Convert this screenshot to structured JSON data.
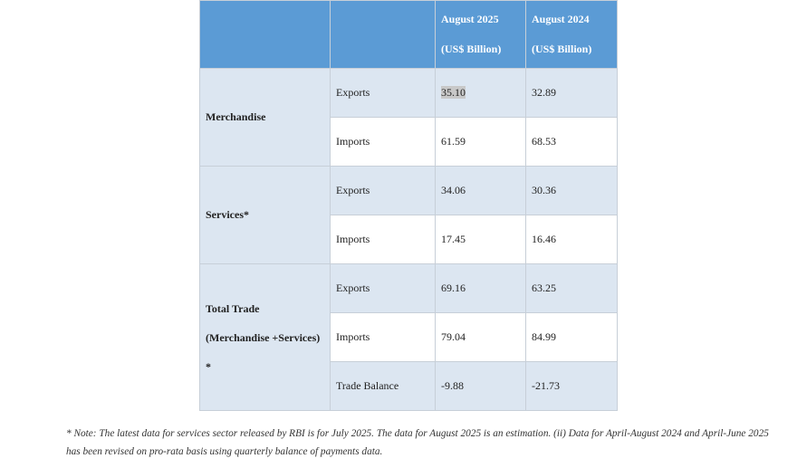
{
  "table": {
    "header": {
      "col3_line1": "August 2025",
      "col3_line2": "(US$ Billion)",
      "col4_line1": "August 2024",
      "col4_line2": "(US$ Billion)"
    },
    "merchandise": {
      "label": "Merchandise",
      "exports": {
        "label": "Exports",
        "aug2025": "35.10",
        "aug2024": "32.89"
      },
      "imports": {
        "label": "Imports",
        "aug2025": "61.59",
        "aug2024": "68.53"
      }
    },
    "services": {
      "label": "Services*",
      "exports": {
        "label": "Exports",
        "aug2025": "34.06",
        "aug2024": "30.36"
      },
      "imports": {
        "label": "Imports",
        "aug2025": "17.45",
        "aug2024": "16.46"
      }
    },
    "total": {
      "label_line1": "Total Trade",
      "label_line2": "(Merchandise +Services) *",
      "exports": {
        "label": "Exports",
        "aug2025": "69.16",
        "aug2024": "63.25"
      },
      "imports": {
        "label": "Imports",
        "aug2025": "79.04",
        "aug2024": "84.99"
      },
      "balance": {
        "label": "Trade Balance",
        "aug2025": "-9.88",
        "aug2024": "-21.73"
      }
    }
  },
  "note": "* Note: The latest data for services sector released by RBI is for July 2025. The data for August 2025 is an estimation. (ii) Data for April-August 2024 and April-June 2025 has been revised on pro-rata basis using quarterly balance of payments data."
}
